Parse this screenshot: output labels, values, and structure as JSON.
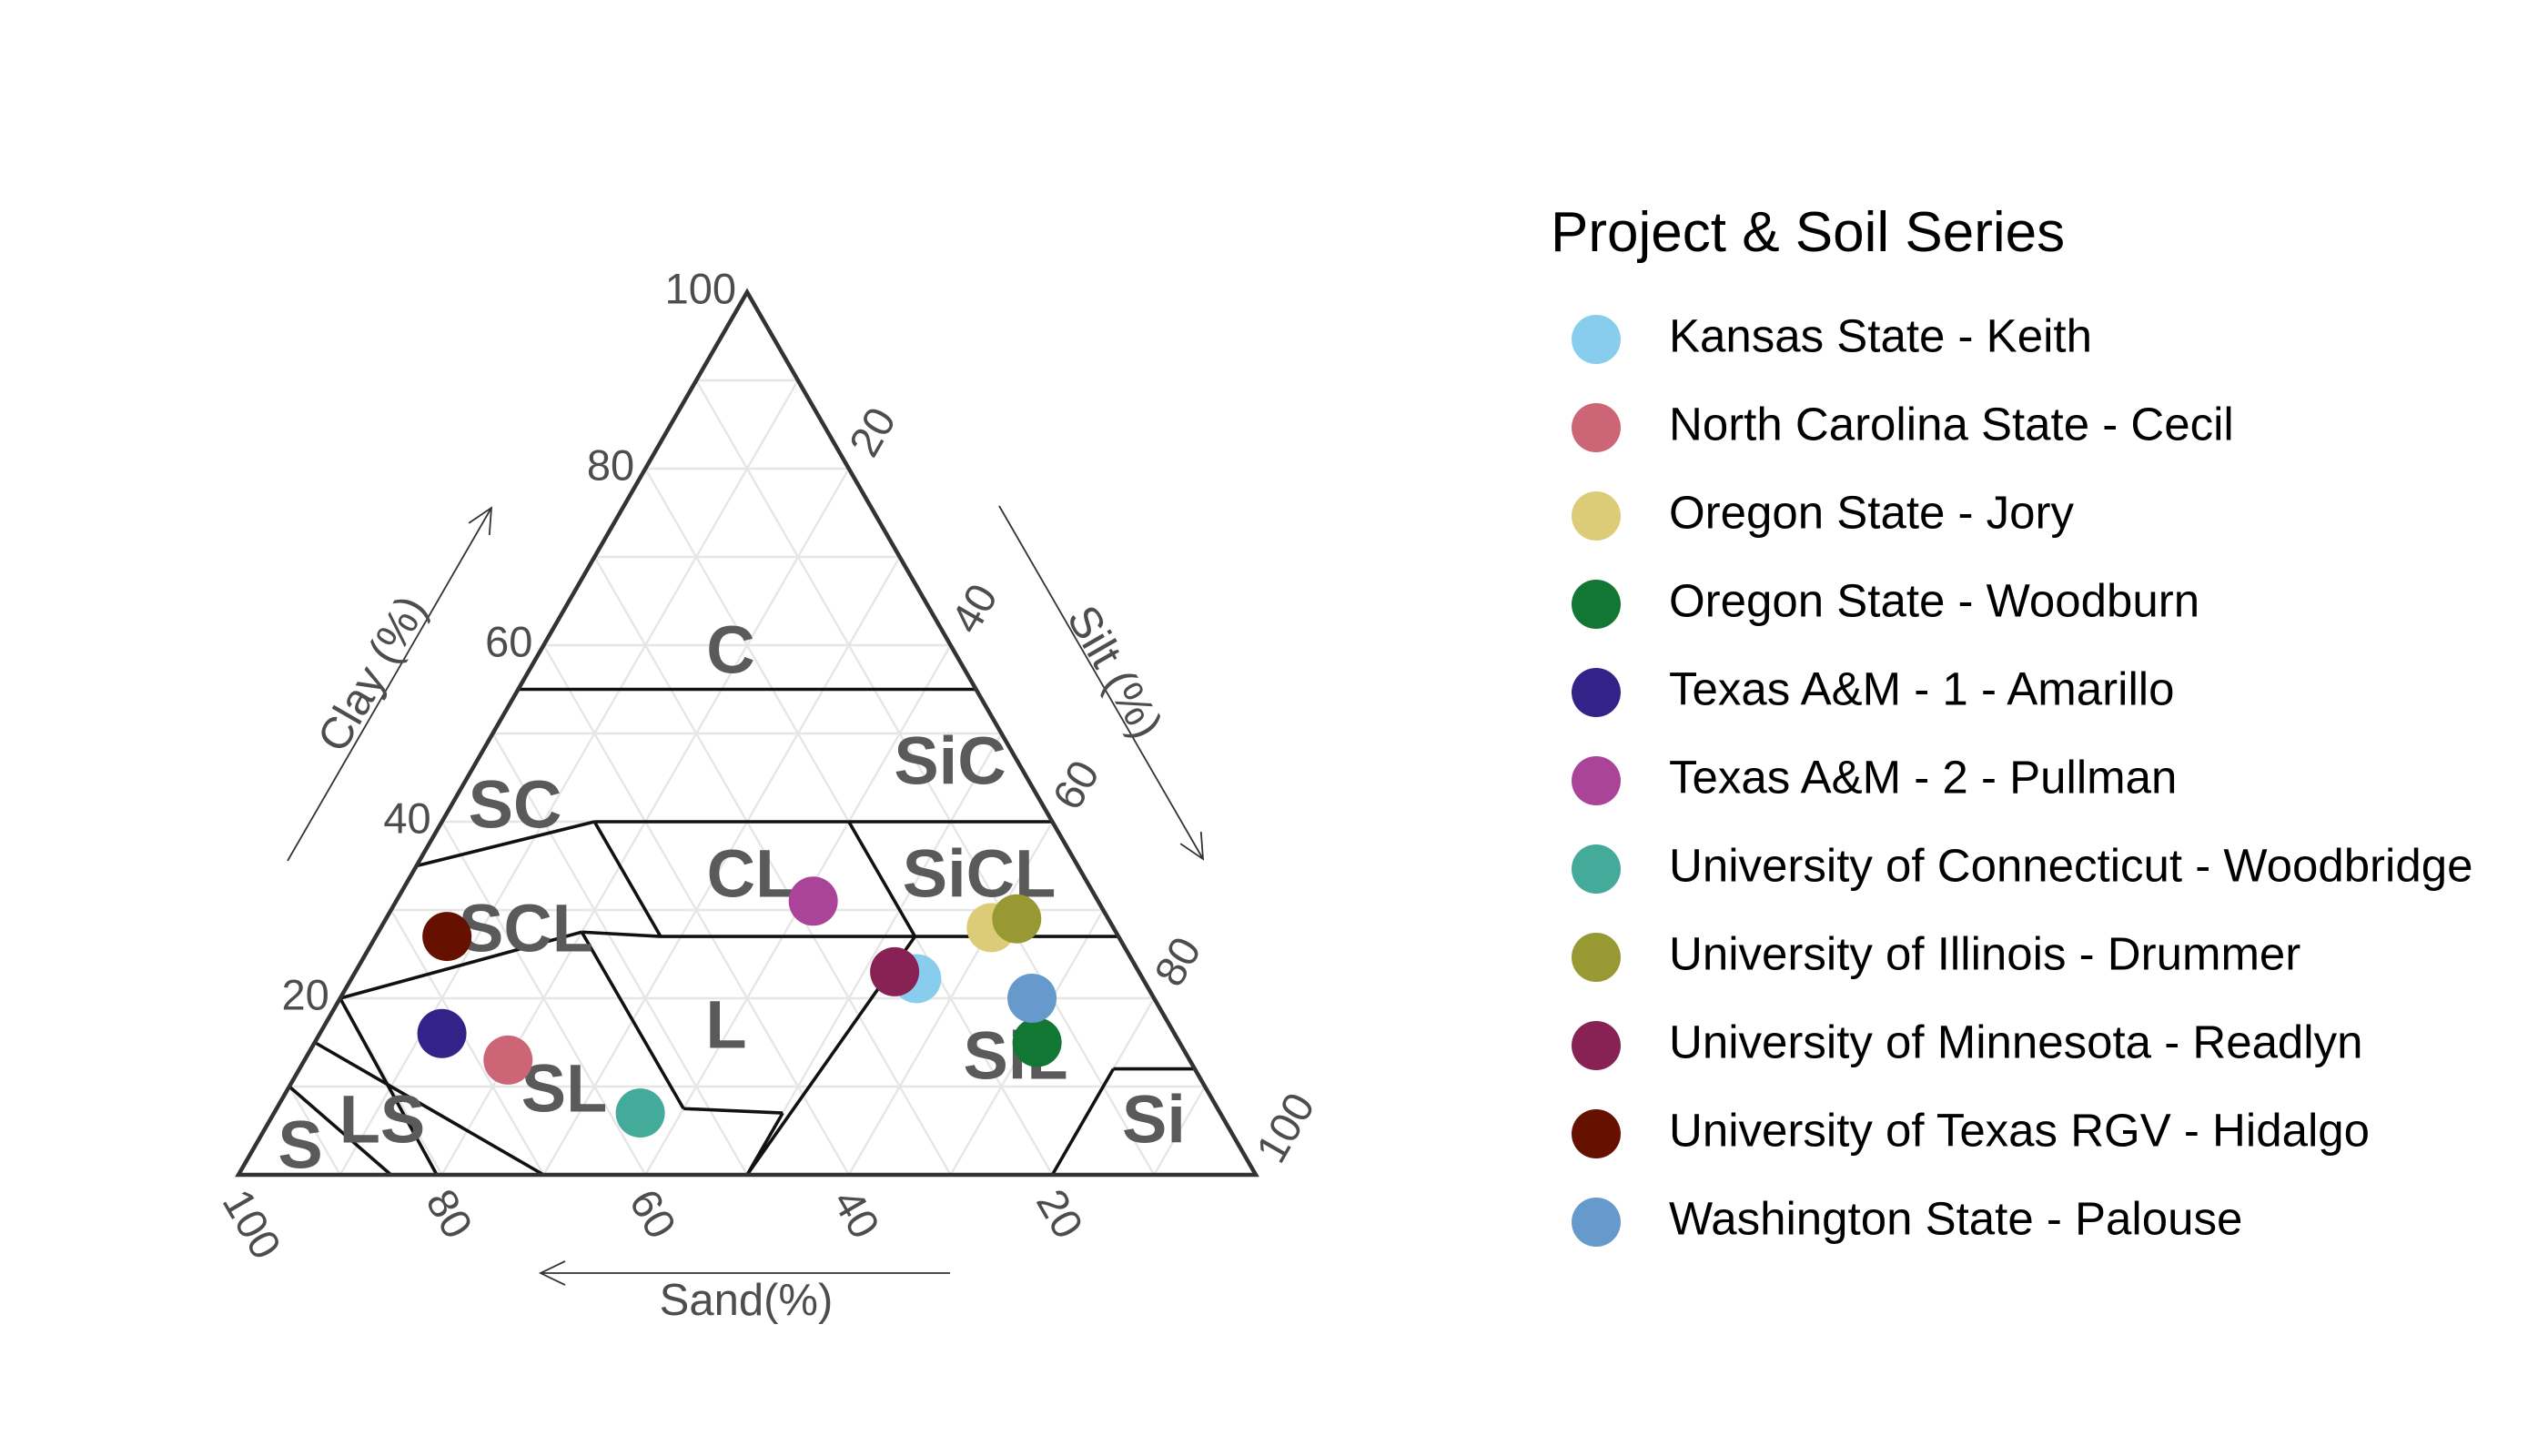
{
  "chart_data": {
    "type": "scatter",
    "subtype": "ternary",
    "axes": {
      "clay": {
        "title": "Clay (%)",
        "ticks": [
          "20",
          "40",
          "60",
          "80",
          "100"
        ]
      },
      "silt": {
        "title": "Silt (%)",
        "ticks": [
          "20",
          "40",
          "60",
          "80",
          "100"
        ]
      },
      "sand": {
        "title": "Sand(%)",
        "ticks": [
          "100",
          "80",
          "60",
          "40",
          "20"
        ]
      },
      "range": [
        0,
        100
      ],
      "grid": true
    },
    "texture_classes": [
      "C",
      "SiC",
      "SC",
      "CL",
      "SiCL",
      "SCL",
      "L",
      "SL",
      "SiL",
      "LS",
      "S",
      "Si"
    ],
    "legend": {
      "title": "Project & Soil Series",
      "position": "right"
    },
    "series": [
      {
        "name": "Kansas State - Keith",
        "color": "#88CCEE",
        "sand": 22,
        "silt": 55,
        "clay": 22
      },
      {
        "name": "North Carolina State - Cecil",
        "color": "#CC6677",
        "sand": 67,
        "silt": 20,
        "clay": 13
      },
      {
        "name": "Oregon State - Jory",
        "color": "#DDCC77",
        "sand": 12,
        "silt": 60,
        "clay": 28
      },
      {
        "name": "Oregon State - Woodburn",
        "color": "#117733",
        "sand": 14,
        "silt": 71,
        "clay": 15
      },
      {
        "name": "Texas A&M - 1 - Amarillo",
        "color": "#332288",
        "sand": 72,
        "silt": 12,
        "clay": 16
      },
      {
        "name": "Texas A&M - 2 - Pullman",
        "color": "#AA4499",
        "sand": 28,
        "silt": 41,
        "clay": 31
      },
      {
        "name": "University of Connecticut - Woodbridge",
        "color": "#44AA99",
        "sand": 57,
        "silt": 36,
        "clay": 7
      },
      {
        "name": "University of Illinois - Drummer",
        "color": "#999933",
        "sand": 9,
        "silt": 62,
        "clay": 29
      },
      {
        "name": "University of Minnesota - Readlyn",
        "color": "#882255",
        "sand": 24,
        "silt": 53,
        "clay": 23
      },
      {
        "name": "University of Texas RGV - Hidalgo",
        "color": "#661100",
        "sand": 66,
        "silt": 7,
        "clay": 27
      },
      {
        "name": "Washington State - Palouse",
        "color": "#6699CC",
        "sand": 12,
        "silt": 68,
        "clay": 20
      }
    ]
  }
}
